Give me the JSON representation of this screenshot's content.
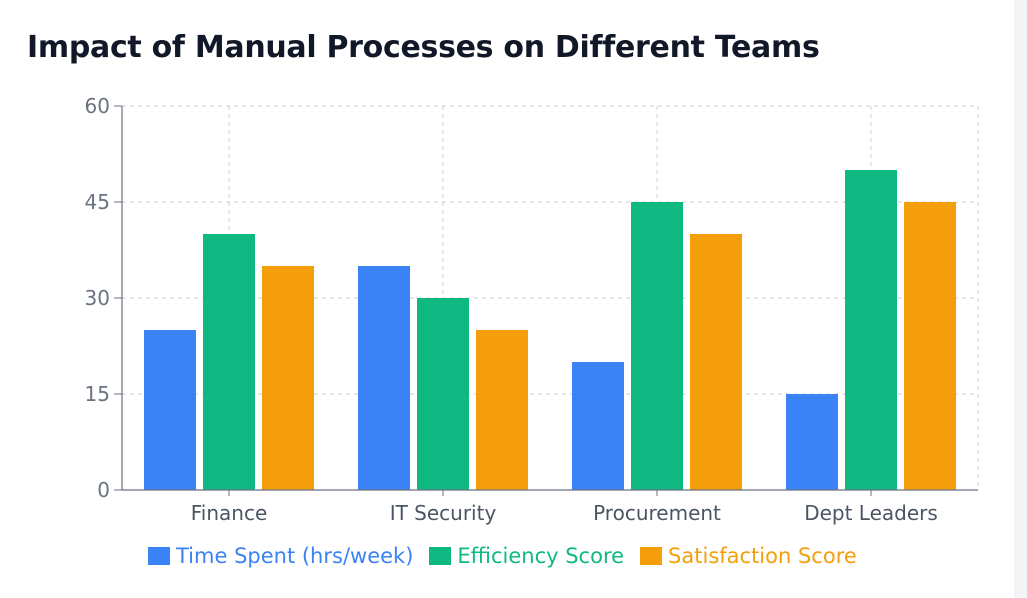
{
  "chart_data": {
    "type": "bar",
    "title": "Impact of Manual Processes on Different Teams",
    "categories": [
      "Finance",
      "IT Security",
      "Procurement",
      "Dept Leaders"
    ],
    "series": [
      {
        "name": "Time Spent (hrs/week)",
        "color": "#3b82f6",
        "values": [
          25,
          35,
          20,
          15
        ]
      },
      {
        "name": "Efficiency Score",
        "color": "#10b981",
        "values": [
          40,
          30,
          45,
          50
        ]
      },
      {
        "name": "Satisfaction Score",
        "color": "#f59e0b",
        "values": [
          35,
          25,
          40,
          45
        ]
      }
    ],
    "yticks": [
      "0",
      "15",
      "30",
      "45",
      "60"
    ],
    "ylim": [
      0,
      60
    ],
    "xlabel": "",
    "ylabel": "",
    "grid": true,
    "legend_position": "bottom"
  }
}
